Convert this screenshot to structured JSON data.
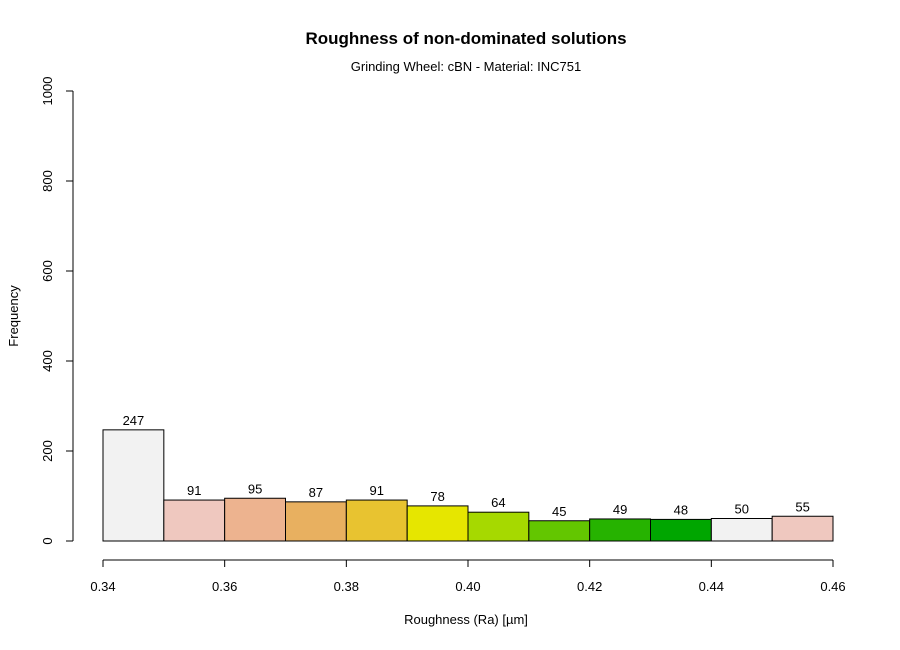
{
  "chart_data": {
    "type": "bar",
    "title": "Roughness of non-dominated solutions",
    "subtitle": "Grinding Wheel: cBN - Material: INC751",
    "xlabel": "Roughness (Ra) [µm]",
    "ylabel": "Frequency",
    "xlim": [
      0.34,
      0.46
    ],
    "ylim": [
      0,
      1000
    ],
    "x_ticks": [
      0.34,
      0.36,
      0.38,
      0.4,
      0.42,
      0.44,
      0.46
    ],
    "x_tick_labels": [
      "0.34",
      "0.36",
      "0.38",
      "0.40",
      "0.42",
      "0.44",
      "0.46"
    ],
    "y_ticks": [
      0,
      200,
      400,
      600,
      800,
      1000
    ],
    "y_tick_labels": [
      "0",
      "200",
      "400",
      "600",
      "800",
      "1000"
    ],
    "bins": [
      {
        "start": 0.34,
        "end": 0.35,
        "value": 247,
        "label": "247",
        "color": "#f2f2f2"
      },
      {
        "start": 0.35,
        "end": 0.36,
        "value": 91,
        "label": "91",
        "color": "#efc8bf"
      },
      {
        "start": 0.36,
        "end": 0.37,
        "value": 95,
        "label": "95",
        "color": "#edb38f"
      },
      {
        "start": 0.37,
        "end": 0.38,
        "value": 87,
        "label": "87",
        "color": "#e8b060"
      },
      {
        "start": 0.38,
        "end": 0.39,
        "value": 91,
        "label": "91",
        "color": "#e8c330"
      },
      {
        "start": 0.39,
        "end": 0.4,
        "value": 78,
        "label": "78",
        "color": "#e6e600"
      },
      {
        "start": 0.4,
        "end": 0.41,
        "value": 64,
        "label": "64",
        "color": "#a6d900"
      },
      {
        "start": 0.41,
        "end": 0.42,
        "value": 45,
        "label": "45",
        "color": "#63c600"
      },
      {
        "start": 0.42,
        "end": 0.43,
        "value": 49,
        "label": "49",
        "color": "#26b300"
      },
      {
        "start": 0.43,
        "end": 0.44,
        "value": 48,
        "label": "48",
        "color": "#00a600"
      },
      {
        "start": 0.44,
        "end": 0.45,
        "value": 50,
        "label": "50",
        "color": "#f2f2f2"
      },
      {
        "start": 0.45,
        "end": 0.46,
        "value": 55,
        "label": "55",
        "color": "#efc8bf"
      }
    ],
    "grid": false,
    "legend": "none"
  }
}
